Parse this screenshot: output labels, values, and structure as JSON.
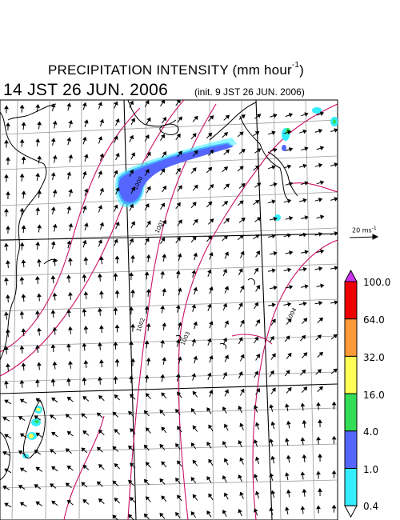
{
  "title": {
    "main": "PRECIPITATION INTENSITY (mm hour",
    "exponent": "-1",
    "close": ")"
  },
  "valid_time": "14 JST 26 JUN. 2006",
  "init_time": "(init. 9 JST 26 JUN. 2006)",
  "wind_reference": {
    "label": "20 ms",
    "exponent": "-1"
  },
  "legend": {
    "labels": [
      "100.0",
      "64.0",
      "32.0",
      "16.0",
      "4.0",
      "1.0",
      "0.4"
    ],
    "colors": [
      "#ee0000",
      "#ff9a3a",
      "#ffff55",
      "#33dd55",
      "#5566ff",
      "#33eeff"
    ],
    "top_arrow_color": "#cc33ee",
    "bottom_arrow_color": "#ffffff"
  },
  "isobars": {
    "color": "#cc1166",
    "labels": [
      "1000",
      "1001",
      "1002",
      "1003",
      "1004"
    ]
  },
  "colors": {
    "land": "#000000",
    "grid": "#9a9a9a",
    "arrow": "#000000"
  }
}
